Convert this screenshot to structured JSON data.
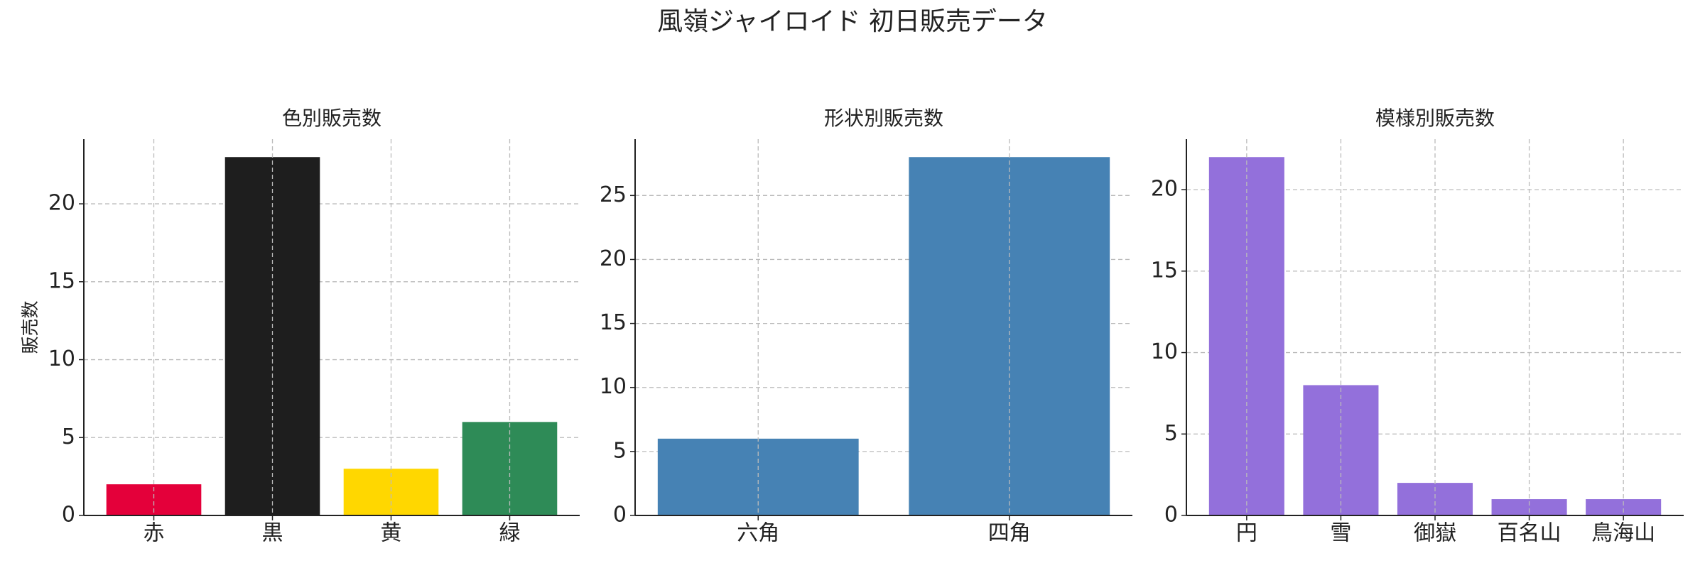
{
  "title": "風嶺ジャイロイド 初日販売データ",
  "chart_data": [
    {
      "type": "bar",
      "title": "色別販売数",
      "ylabel": "販売数",
      "categories": [
        "赤",
        "黒",
        "黄",
        "緑"
      ],
      "values": [
        2,
        23,
        3,
        6
      ],
      "colors": [
        "#e4003a",
        "#1e1e1e",
        "#ffd700",
        "#2e8b57"
      ],
      "ylim": [
        0,
        24.15
      ],
      "yticks": [
        0,
        5,
        10,
        15,
        20
      ],
      "grid": true
    },
    {
      "type": "bar",
      "title": "形状別販売数",
      "categories": [
        "六角",
        "四角"
      ],
      "values": [
        6,
        28
      ],
      "color": "#4682b4",
      "ylim": [
        0,
        29.4
      ],
      "yticks": [
        0,
        5,
        10,
        15,
        20,
        25
      ],
      "grid": true
    },
    {
      "type": "bar",
      "title": "模様別販売数",
      "categories": [
        "円",
        "雪",
        "御嶽",
        "百名山",
        "鳥海山"
      ],
      "values": [
        22,
        8,
        2,
        1,
        1
      ],
      "color": "#9370db",
      "ylim": [
        0,
        23.1
      ],
      "yticks": [
        0,
        5,
        10,
        15,
        20
      ],
      "grid": true
    }
  ]
}
